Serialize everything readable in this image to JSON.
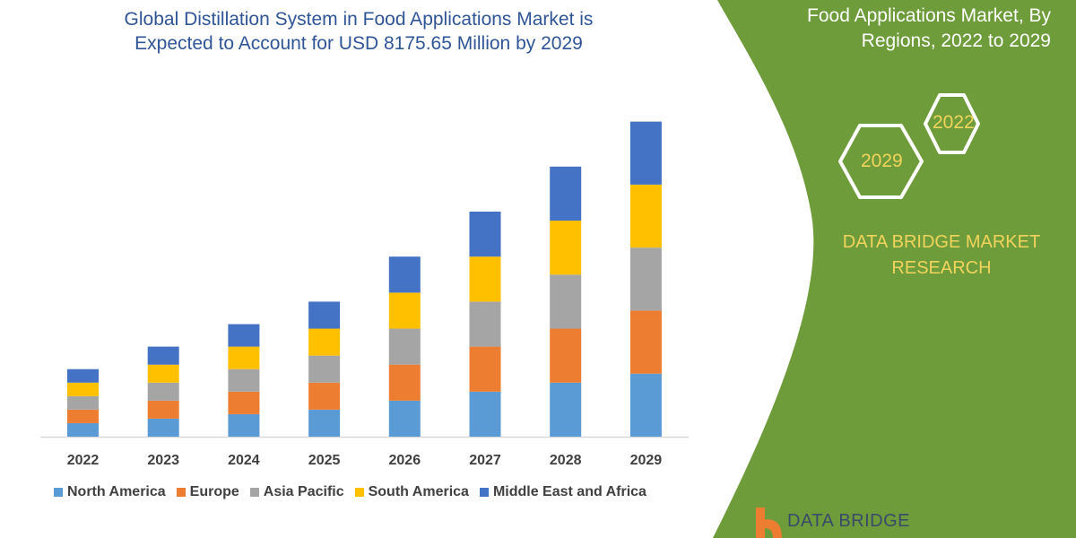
{
  "title_line1": "Global Distillation System in Food Applications Market is",
  "title_line2": "Expected to Account for USD 8175.65 Million by 2029",
  "panel": {
    "title_line1": "Food Applications Market, By",
    "title_line2": "Regions, 2022 to 2029",
    "hex_start": "2022",
    "hex_end": "2029",
    "brand_line1": "DATA BRIDGE MARKET",
    "brand_line2": "RESEARCH",
    "logo_text": "DATA BRIDGE",
    "panel_color": "#6e9c3a",
    "accent_color": "#f2d45c"
  },
  "chart_data": {
    "type": "bar",
    "stacked": true,
    "categories": [
      "2022",
      "2023",
      "2024",
      "2025",
      "2026",
      "2027",
      "2028",
      "2029"
    ],
    "series": [
      {
        "name": "North America",
        "color": "#5b9bd5",
        "values": [
          15,
          20,
          25,
          30,
          40,
          50,
          60,
          70
        ]
      },
      {
        "name": "Europe",
        "color": "#ed7d31",
        "values": [
          15,
          20,
          25,
          30,
          40,
          50,
          60,
          70
        ]
      },
      {
        "name": "Asia Pacific",
        "color": "#a5a5a5",
        "values": [
          15,
          20,
          25,
          30,
          40,
          50,
          60,
          70
        ]
      },
      {
        "name": "South America",
        "color": "#ffc000",
        "values": [
          15,
          20,
          25,
          30,
          40,
          50,
          60,
          70
        ]
      },
      {
        "name": "Middle East and Africa",
        "color": "#4472c4",
        "values": [
          15,
          20,
          25,
          30,
          40,
          50,
          60,
          70
        ]
      }
    ],
    "title": "Global Distillation System in Food Applications Market is Expected to Account for USD 8175.65 Million by 2029",
    "xlabel": "",
    "ylabel": "",
    "y_axis_shown": false,
    "grid": false,
    "legend": "bottom"
  }
}
